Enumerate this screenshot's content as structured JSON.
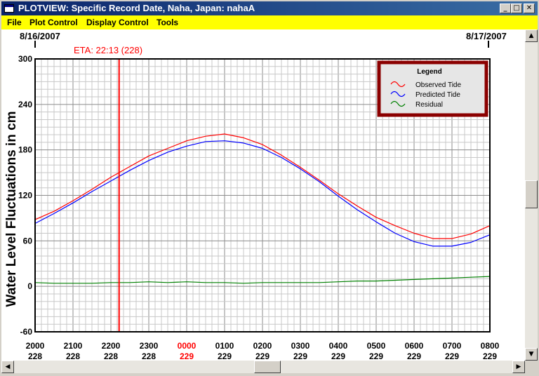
{
  "window": {
    "title": "PLOTVIEW: Specific Record Date, Naha, Japan: nahaA"
  },
  "menu": {
    "items": [
      "File",
      "Plot Control",
      "Display Control",
      "Tools"
    ]
  },
  "icons": {
    "minimize": "minimize-icon",
    "maximize": "maximize-icon",
    "close": "close-icon"
  },
  "dates": {
    "left": "8/16/2007",
    "right": "8/17/2007"
  },
  "eta": {
    "label": "ETA: 22:13 (228)",
    "hour": 2.2167
  },
  "colors": {
    "observed": "#ff0000",
    "predicted": "#0000ff",
    "residual": "#008000",
    "eta": "#ff0000",
    "legend_border": "#8b0000",
    "menubar": "#ffff00"
  },
  "chart_data": {
    "type": "line",
    "ylabel": "Water Level Fluctuations in cm",
    "ylim": [
      -60,
      300
    ],
    "yticks": [
      "300",
      "240",
      "180",
      "120",
      "60",
      "0",
      "-60"
    ],
    "xlim": [
      0,
      12
    ],
    "xticks": [
      {
        "time": "2000",
        "day": "228",
        "highlight": false
      },
      {
        "time": "2100",
        "day": "228",
        "highlight": false
      },
      {
        "time": "2200",
        "day": "228",
        "highlight": false
      },
      {
        "time": "2300",
        "day": "228",
        "highlight": false
      },
      {
        "time": "0000",
        "day": "229",
        "highlight": true
      },
      {
        "time": "0100",
        "day": "229",
        "highlight": false
      },
      {
        "time": "0200",
        "day": "229",
        "highlight": false
      },
      {
        "time": "0300",
        "day": "229",
        "highlight": false
      },
      {
        "time": "0400",
        "day": "229",
        "highlight": false
      },
      {
        "time": "0500",
        "day": "229",
        "highlight": false
      },
      {
        "time": "0600",
        "day": "229",
        "highlight": false
      },
      {
        "time": "0700",
        "day": "229",
        "highlight": false
      },
      {
        "time": "0800",
        "day": "229",
        "highlight": false
      }
    ],
    "grid": true,
    "legend": {
      "title": "Legend",
      "position": "top-right"
    },
    "series": [
      {
        "name": "Observed Tide",
        "color": "#ff0000",
        "x": [
          0,
          0.5,
          1,
          1.5,
          2,
          2.5,
          3,
          3.5,
          4,
          4.5,
          5,
          5.5,
          6,
          6.5,
          7,
          7.5,
          8,
          8.5,
          9,
          9.5,
          10,
          10.5,
          11,
          11.5,
          12
        ],
        "y": [
          88,
          99,
          113,
          128,
          144,
          158,
          172,
          182,
          192,
          198,
          201,
          196,
          187,
          173,
          157,
          140,
          122,
          106,
          91,
          80,
          70,
          63,
          63,
          69,
          80
        ]
      },
      {
        "name": "Predicted Tide",
        "color": "#0000ff",
        "x": [
          0,
          0.5,
          1,
          1.5,
          2,
          2.5,
          3,
          3.5,
          4,
          4.5,
          5,
          5.5,
          6,
          6.5,
          7,
          7.5,
          8,
          8.5,
          9,
          9.5,
          10,
          10.5,
          11,
          11.5,
          12
        ],
        "y": [
          83,
          96,
          110,
          125,
          139,
          153,
          166,
          177,
          185,
          191,
          192,
          189,
          182,
          170,
          155,
          138,
          119,
          101,
          85,
          70,
          59,
          53,
          53,
          58,
          68
        ]
      },
      {
        "name": "Residual",
        "color": "#008000",
        "x": [
          0,
          0.5,
          1,
          1.5,
          2,
          2.5,
          3,
          3.5,
          4,
          4.5,
          5,
          5.5,
          6,
          6.5,
          7,
          7.5,
          8,
          8.5,
          9,
          9.5,
          10,
          10.5,
          11,
          11.5,
          12
        ],
        "y": [
          5,
          4,
          4,
          4,
          5,
          5,
          6,
          5,
          6,
          5,
          5,
          4,
          5,
          5,
          5,
          5,
          6,
          7,
          7,
          8,
          9,
          10,
          11,
          12,
          13
        ]
      }
    ]
  }
}
